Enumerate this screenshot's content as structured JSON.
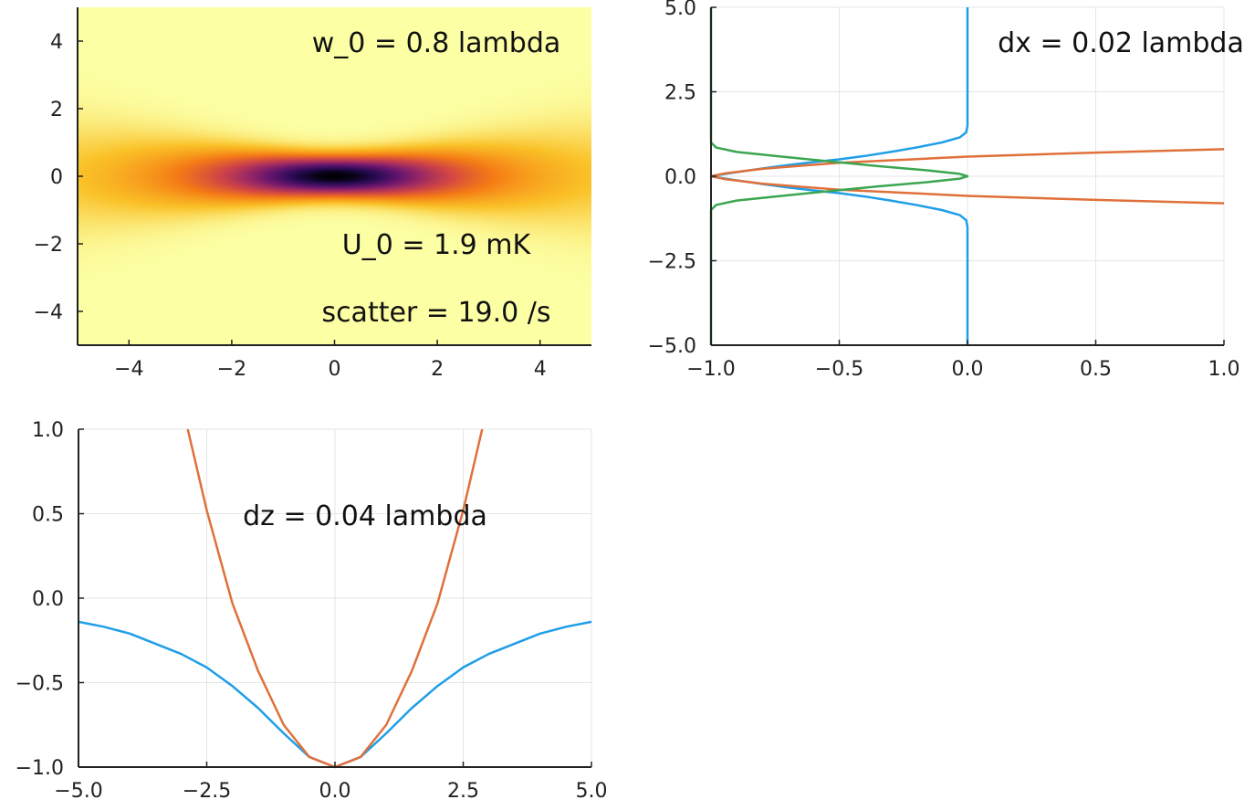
{
  "chart_data": [
    {
      "type": "heatmap",
      "title": "",
      "xlabel": "",
      "ylabel": "",
      "xlim": [
        -5,
        5
      ],
      "ylim": [
        -5,
        5
      ],
      "xticks": [
        -4,
        -2,
        0,
        2,
        4
      ],
      "yticks": [
        -4,
        -2,
        0,
        2,
        4
      ],
      "colormap": "inferno",
      "field": {
        "kind": "gaussian-beam",
        "w0": 0.8,
        "rayleigh_range": 2.0,
        "depth": 1.0
      },
      "annotations": [
        "w_0 = 0.8 lambda",
        "U_0 = 1.9 mK",
        "scatter = 19.0 /s"
      ]
    },
    {
      "type": "line",
      "title": "",
      "xlabel": "",
      "ylabel": "",
      "xlim": [
        -1,
        1
      ],
      "ylim": [
        -5,
        5
      ],
      "xticks": [
        -1.0,
        -0.5,
        0.0,
        0.5,
        1.0
      ],
      "yticks": [
        -5.0,
        -2.5,
        0.0,
        2.5,
        5.0
      ],
      "grid": true,
      "annotations": [
        "dx = 0.02 lambda"
      ],
      "series": [
        {
          "color": "#1f9ee8",
          "points": [
            [
              0.0,
              -5.0
            ],
            [
              0.0,
              -1.5
            ],
            [
              -0.005,
              -1.3
            ],
            [
              -0.03,
              -1.15
            ],
            [
              -0.1,
              -1.0
            ],
            [
              -0.2,
              -0.85
            ],
            [
              -0.3,
              -0.72
            ],
            [
              -0.4,
              -0.6
            ],
            [
              -0.5,
              -0.5
            ],
            [
              -0.6,
              -0.42
            ],
            [
              -0.7,
              -0.33
            ],
            [
              -0.8,
              -0.23
            ],
            [
              -0.9,
              -0.12
            ],
            [
              -0.97,
              -0.04
            ],
            [
              -1.0,
              0.0
            ],
            [
              -0.97,
              0.04
            ],
            [
              -0.9,
              0.12
            ],
            [
              -0.8,
              0.23
            ],
            [
              -0.7,
              0.33
            ],
            [
              -0.6,
              0.42
            ],
            [
              -0.5,
              0.5
            ],
            [
              -0.4,
              0.6
            ],
            [
              -0.3,
              0.72
            ],
            [
              -0.2,
              0.85
            ],
            [
              -0.1,
              1.0
            ],
            [
              -0.03,
              1.15
            ],
            [
              -0.005,
              1.3
            ],
            [
              0.0,
              1.5
            ],
            [
              0.0,
              5.0
            ]
          ]
        },
        {
          "color": "#e0703a",
          "points": [
            [
              1.0,
              -0.8
            ],
            [
              0.5,
              -0.7
            ],
            [
              0.0,
              -0.58
            ],
            [
              -0.5,
              -0.4
            ],
            [
              -0.8,
              -0.22
            ],
            [
              -0.95,
              -0.08
            ],
            [
              -1.0,
              0.0
            ],
            [
              -0.95,
              0.08
            ],
            [
              -0.8,
              0.22
            ],
            [
              -0.5,
              0.4
            ],
            [
              0.0,
              0.58
            ],
            [
              0.5,
              0.7
            ],
            [
              1.0,
              0.8
            ]
          ]
        },
        {
          "color": "#3aa651",
          "points": [
            [
              -1.0,
              -5.0
            ],
            [
              -1.0,
              -1.0
            ],
            [
              -0.98,
              -0.85
            ],
            [
              -0.9,
              -0.72
            ],
            [
              -0.75,
              -0.6
            ],
            [
              -0.55,
              -0.45
            ],
            [
              -0.35,
              -0.3
            ],
            [
              -0.15,
              -0.17
            ],
            [
              -0.03,
              -0.07
            ],
            [
              0.0,
              0.0
            ],
            [
              -0.03,
              0.07
            ],
            [
              -0.15,
              0.17
            ],
            [
              -0.35,
              0.3
            ],
            [
              -0.55,
              0.45
            ],
            [
              -0.75,
              0.6
            ],
            [
              -0.9,
              0.72
            ],
            [
              -0.98,
              0.85
            ],
            [
              -1.0,
              1.0
            ],
            [
              -1.0,
              5.0
            ]
          ]
        }
      ]
    },
    {
      "type": "line",
      "title": "",
      "xlabel": "",
      "ylabel": "",
      "xlim": [
        -5,
        5
      ],
      "ylim": [
        -1,
        1
      ],
      "xticks": [
        -5.0,
        -2.5,
        0.0,
        2.5,
        5.0
      ],
      "yticks": [
        -1.0,
        -0.5,
        0.0,
        0.5,
        1.0
      ],
      "grid": true,
      "annotations": [
        "dz = 0.04 lambda"
      ],
      "series": [
        {
          "color": "#1f9ee8",
          "points": [
            [
              -5.0,
              -0.14
            ],
            [
              -4.5,
              -0.17
            ],
            [
              -4.0,
              -0.21
            ],
            [
              -3.5,
              -0.27
            ],
            [
              -3.0,
              -0.33
            ],
            [
              -2.5,
              -0.41
            ],
            [
              -2.0,
              -0.52
            ],
            [
              -1.5,
              -0.65
            ],
            [
              -1.0,
              -0.8
            ],
            [
              -0.5,
              -0.94
            ],
            [
              0.0,
              -1.0
            ],
            [
              0.5,
              -0.94
            ],
            [
              1.0,
              -0.8
            ],
            [
              1.5,
              -0.65
            ],
            [
              2.0,
              -0.52
            ],
            [
              2.5,
              -0.41
            ],
            [
              3.0,
              -0.33
            ],
            [
              3.5,
              -0.27
            ],
            [
              4.0,
              -0.21
            ],
            [
              4.5,
              -0.17
            ],
            [
              5.0,
              -0.14
            ]
          ]
        },
        {
          "color": "#e0703a",
          "points": [
            [
              -2.87,
              1.0
            ],
            [
              -2.5,
              0.52
            ],
            [
              -2.0,
              -0.03
            ],
            [
              -1.5,
              -0.43
            ],
            [
              -1.0,
              -0.75
            ],
            [
              -0.5,
              -0.94
            ],
            [
              0.0,
              -1.0
            ],
            [
              0.5,
              -0.94
            ],
            [
              1.0,
              -0.75
            ],
            [
              1.5,
              -0.43
            ],
            [
              2.0,
              -0.03
            ],
            [
              2.5,
              0.52
            ],
            [
              2.87,
              1.0
            ]
          ]
        }
      ]
    }
  ]
}
